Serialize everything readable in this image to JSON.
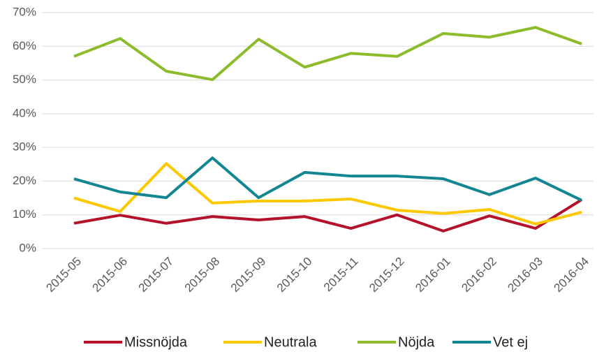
{
  "chart_data": {
    "type": "line",
    "categories": [
      "2015-05",
      "2015-06",
      "2015-07",
      "2015-08",
      "2015-09",
      "2015-10",
      "2015-11",
      "2015-12",
      "2016-01",
      "2016-02",
      "2016-03",
      "2016-04"
    ],
    "series": [
      {
        "name": "Missnöjda",
        "color": "#b5122b",
        "values": [
          7.5,
          9.9,
          7.5,
          9.5,
          8.5,
          9.5,
          6,
          10,
          5.2,
          9.7,
          6,
          14.5
        ]
      },
      {
        "name": "Neutrala",
        "color": "#fcc800",
        "values": [
          15,
          11,
          25.2,
          13.5,
          14.1,
          14.1,
          14.7,
          11.4,
          10.4,
          11.6,
          7.3,
          10.8
        ]
      },
      {
        "name": "Nöjda",
        "color": "#8cbc2c",
        "values": [
          57,
          62.3,
          52.6,
          50.1,
          62.1,
          53.8,
          57.9,
          57,
          63.8,
          62.7,
          65.6,
          60.7
        ]
      },
      {
        "name": "Vet ej",
        "color": "#138693",
        "values": [
          20.7,
          16.8,
          15.1,
          26.9,
          15.1,
          22.6,
          21.5,
          21.5,
          20.7,
          16,
          20.9,
          14.3
        ]
      }
    ],
    "ylim": [
      0,
      70
    ],
    "yticks": [
      {
        "value": 0,
        "label": "0%"
      },
      {
        "value": 10,
        "label": "10%"
      },
      {
        "value": 20,
        "label": "20%"
      },
      {
        "value": 30,
        "label": "30%"
      },
      {
        "value": 40,
        "label": "40%"
      },
      {
        "value": 50,
        "label": "50%"
      },
      {
        "value": 60,
        "label": "60%"
      },
      {
        "value": 70,
        "label": "70%"
      }
    ],
    "grid": true,
    "legend": "bottom"
  }
}
